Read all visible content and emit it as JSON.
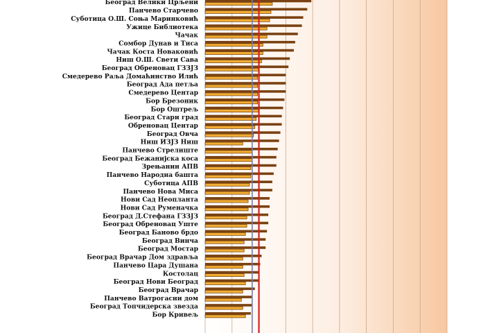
{
  "chart_data": {
    "type": "bar",
    "title": "",
    "xlabel": "",
    "ylabel": "",
    "categories": [
      "Београд Велики Црљени",
      "Панчево Старчево",
      "Суботица О.Ш. Соња Маринковић",
      "Ужице Библиотека",
      "Чачак",
      "Сомбор Дунав и Тиса",
      "Чачак Коста Новаковић",
      "Ниш О.Ш. Свети Сава",
      "Београд Обреновац ГЗЗЈЗ",
      "Смедерево Раља Домаћинство Илић",
      "Београд Ада петља",
      "Смедерево Центар",
      "Бор Брезоник",
      "Бор Оштрељ",
      "Београд Стари град",
      "Обреновац Центар",
      "Београд Овча",
      "Ниш ИЗЈЗ Ниш",
      "Панчево Стрелиште",
      "Београд Бежанијска коса",
      "Зрењанин АПВ",
      "Панчево Народна башта",
      "Суботица АПВ",
      "Панчево Нова Миса",
      "Нови Сад Неопланта",
      "Нови Сад Руменачка",
      "Београд  Д.Стефана ГЗЗЈЗ",
      "Београд Обреновац Уште",
      "Београд Баново брдо",
      "Београд Винча",
      "Београд Мостар",
      "Београд Врачар Дом здравља",
      "Панчево Цара Душана",
      "Костолац",
      "Београд Нови Београд",
      "Београд Врачар",
      "Панчево Ватрогасни дом",
      "Београд Топчидерска звезда",
      "Бор Кривељ"
    ],
    "series": [
      {
        "values": [
          79,
          76,
          73,
          72,
          69,
          67,
          66,
          63,
          62,
          60,
          60,
          60,
          59,
          58,
          57,
          57,
          56,
          55,
          54,
          53,
          53,
          51,
          50,
          50,
          48,
          48,
          47,
          47,
          46,
          45,
          45,
          42,
          41,
          40,
          40,
          37,
          35,
          35,
          34
        ]
      },
      {
        "values": [
          50,
          49,
          48,
          46,
          46,
          43,
          43,
          42,
          40,
          39,
          39,
          39,
          39,
          40,
          38,
          37,
          36,
          28,
          35,
          35,
          34,
          34,
          33,
          33,
          32,
          32,
          31,
          31,
          30,
          29,
          29,
          28,
          28,
          29,
          30,
          28,
          27,
          28,
          30
        ]
      }
    ],
    "reference_lines": [
      {
        "value": 35,
        "color": "#7a7aaa"
      },
      {
        "value": 40,
        "color": "#d42020"
      }
    ],
    "xlim": [
      0,
      180
    ],
    "grid": true,
    "colors": {
      "series_dark": "#7a4212",
      "series_light_fill": "#f2ad32",
      "series_light_edge": "#6a3808",
      "background_left": "#ffffff",
      "background_right": "#f7c8a0"
    }
  }
}
